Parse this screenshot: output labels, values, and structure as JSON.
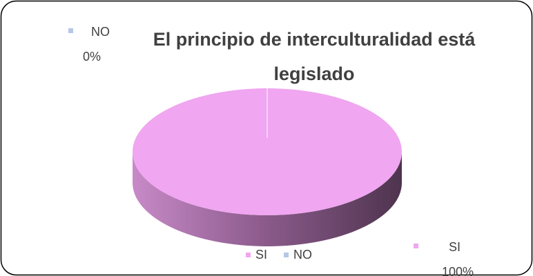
{
  "chart_data": {
    "type": "pie",
    "title": "El principio de interculturalidad está legislado",
    "categories": [
      "SI",
      "NO"
    ],
    "values": [
      100,
      0
    ],
    "value_labels": [
      "100%",
      "0%"
    ],
    "colors": [
      "#f0a6f0",
      "#b4c7e7"
    ],
    "legend": "bottom"
  }
}
